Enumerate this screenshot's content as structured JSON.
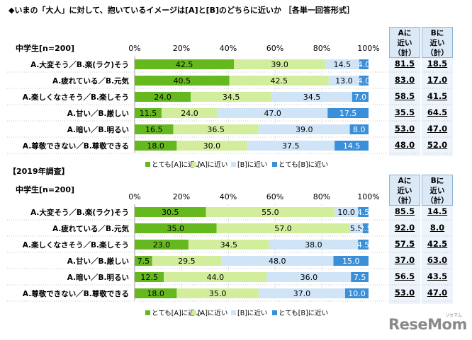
{
  "title": "◆いまの「大人」に対して、抱いているイメージは[A]と[B]のどちらに近いか ［各単一回答形式］",
  "colors": {
    "a_strong": "#66b81f",
    "a_weak": "#d2ee9d",
    "b_weak": "#cfe4f7",
    "b_strong": "#3a8fd9",
    "head_bg": "#dbe9f7",
    "col_bg": "#eef4fb"
  },
  "headers": {
    "a_near": "Aに\n近い\n（計）",
    "b_near": "Bに\n近い\n（計）"
  },
  "chart_data": [
    {
      "type": "bar",
      "subtitle": "",
      "group_label": "中学生[n=200]",
      "xlim": [
        0,
        100
      ],
      "x_ticks": [
        "0%",
        "20%",
        "40%",
        "60%",
        "80%",
        "100%"
      ],
      "categories": [
        "A.大変そう／B.楽(ラク)そう",
        "A.疲れている／B.元気",
        "A.楽しくなさそう／B.楽しそう",
        "A.甘い／B.厳しい",
        "A.暗い／B.明るい",
        "A.尊敬できない／B.尊敬できる"
      ],
      "series": [
        {
          "name": "とても[A]に近い",
          "values": [
            42.5,
            40.5,
            24.0,
            11.5,
            16.5,
            18.0
          ]
        },
        {
          "name": "[A]に近い",
          "values": [
            39.0,
            42.5,
            34.5,
            24.0,
            36.5,
            30.0
          ]
        },
        {
          "name": "[B]に近い",
          "values": [
            14.5,
            13.0,
            34.5,
            47.0,
            39.0,
            37.5
          ]
        },
        {
          "name": "とても[B]に近い",
          "values": [
            4.0,
            4.0,
            7.0,
            17.5,
            8.0,
            14.5
          ]
        }
      ],
      "a_total": [
        "81.5",
        "83.0",
        "58.5",
        "35.5",
        "53.0",
        "48.0"
      ],
      "b_total": [
        "18.5",
        "17.0",
        "41.5",
        "64.5",
        "47.0",
        "52.0"
      ],
      "legend_position": "bottom"
    },
    {
      "type": "bar",
      "subtitle": "【2019年調査】",
      "group_label": "中学生[n=200]",
      "xlim": [
        0,
        100
      ],
      "x_ticks": [
        "0%",
        "20%",
        "40%",
        "60%",
        "80%",
        "100%"
      ],
      "categories": [
        "A.大変そう／B.楽(ラク)そう",
        "A.疲れている／B.元気",
        "A.楽しくなさそう／B.楽しそう",
        "A.甘い／B.厳しい",
        "A.暗い／B.明るい",
        "A.尊敬できない／B.尊敬できる"
      ],
      "series": [
        {
          "name": "とても[A]に近い",
          "values": [
            30.5,
            35.0,
            23.0,
            7.5,
            12.5,
            18.0
          ]
        },
        {
          "name": "[A]に近い",
          "values": [
            55.0,
            57.0,
            34.5,
            29.5,
            44.0,
            35.0
          ]
        },
        {
          "name": "[B]に近い",
          "values": [
            10.0,
            5.5,
            38.0,
            48.0,
            36.0,
            37.0
          ]
        },
        {
          "name": "とても[B]に近い",
          "values": [
            4.5,
            2.5,
            4.5,
            15.0,
            7.5,
            10.0
          ]
        }
      ],
      "a_total": [
        "85.5",
        "92.0",
        "57.5",
        "37.0",
        "56.5",
        "53.0"
      ],
      "b_total": [
        "14.5",
        "8.0",
        "42.5",
        "63.0",
        "43.5",
        "47.0"
      ],
      "legend_position": "bottom"
    }
  ],
  "logo": {
    "text": "ReseMom",
    "sub": "リセマム"
  }
}
